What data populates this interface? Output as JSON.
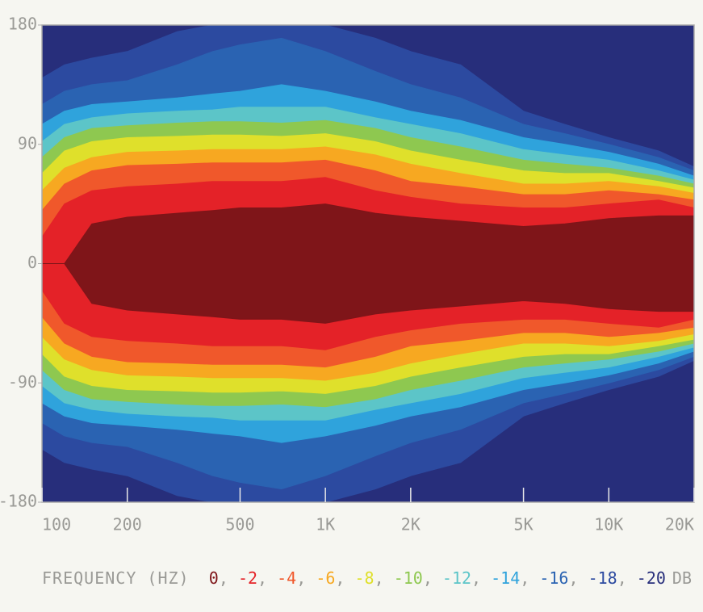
{
  "chart_data": {
    "type": "contour",
    "x_label": "FREQUENCY (HZ)",
    "xscale": "log",
    "xlim": [
      100,
      20000
    ],
    "xticks": [
      100,
      200,
      500,
      {
        "value": 1000,
        "label": "1K"
      },
      {
        "value": 2000,
        "label": "2K"
      },
      {
        "value": 5000,
        "label": "5K"
      },
      {
        "value": 10000,
        "label": "10K"
      },
      {
        "value": 20000,
        "label": "20K"
      }
    ],
    "ylim": [
      -180,
      180
    ],
    "yticks": [
      -180,
      -90,
      0,
      90,
      180
    ],
    "x": [
      100,
      120,
      150,
      200,
      300,
      400,
      500,
      700,
      1000,
      1500,
      2000,
      3000,
      5000,
      7000,
      10000,
      15000,
      20000
    ],
    "series": [
      {
        "name": "-20",
        "color": "#272e7b",
        "values": [
          180,
          180,
          180,
          180,
          180,
          180,
          180,
          180,
          180,
          180,
          180,
          180,
          180,
          180,
          180,
          180,
          180
        ]
      },
      {
        "name": "-18",
        "color": "#2c4aa0",
        "values": [
          140,
          150,
          155,
          160,
          175,
          180,
          180,
          180,
          180,
          170,
          160,
          150,
          115,
          105,
          95,
          85,
          73
        ]
      },
      {
        "name": "-16",
        "color": "#2a63b2",
        "values": [
          120,
          130,
          135,
          138,
          150,
          160,
          165,
          170,
          160,
          145,
          135,
          125,
          105,
          98,
          90,
          80,
          70
        ]
      },
      {
        "name": "-14",
        "color": "#2fa3dc",
        "values": [
          105,
          115,
          120,
          122,
          125,
          128,
          130,
          135,
          130,
          122,
          115,
          108,
          95,
          90,
          84,
          75,
          66
        ]
      },
      {
        "name": "-12",
        "color": "#5cc5c8",
        "values": [
          92,
          105,
          110,
          113,
          115,
          116,
          118,
          118,
          118,
          110,
          105,
          98,
          86,
          82,
          78,
          70,
          63
        ]
      },
      {
        "name": "-10",
        "color": "#8ec850",
        "values": [
          80,
          95,
          102,
          104,
          106,
          107,
          107,
          106,
          108,
          102,
          95,
          88,
          78,
          75,
          72,
          66,
          60
        ]
      },
      {
        "name": "-8",
        "color": "#dfe02b",
        "values": [
          68,
          85,
          92,
          95,
          96,
          97,
          97,
          96,
          98,
          92,
          85,
          78,
          70,
          68,
          68,
          62,
          57
        ]
      },
      {
        "name": "-6",
        "color": "#f7a821",
        "values": [
          55,
          72,
          80,
          84,
          85,
          86,
          86,
          86,
          88,
          82,
          75,
          68,
          60,
          60,
          62,
          58,
          53
        ]
      },
      {
        "name": "-4",
        "color": "#f0582b",
        "values": [
          40,
          60,
          70,
          74,
          75,
          76,
          76,
          76,
          78,
          70,
          62,
          58,
          52,
          52,
          55,
          52,
          48
        ]
      },
      {
        "name": "-2",
        "color": "#e42228",
        "values": [
          20,
          45,
          55,
          58,
          60,
          62,
          62,
          62,
          65,
          55,
          50,
          45,
          42,
          42,
          45,
          48,
          42
        ]
      },
      {
        "name": "0",
        "color": "#7f1519",
        "values": [
          0,
          0,
          30,
          35,
          38,
          40,
          42,
          42,
          45,
          38,
          35,
          32,
          28,
          30,
          34,
          36,
          36
        ]
      }
    ],
    "legend_separator": ", ",
    "legend_unit": "DB"
  }
}
